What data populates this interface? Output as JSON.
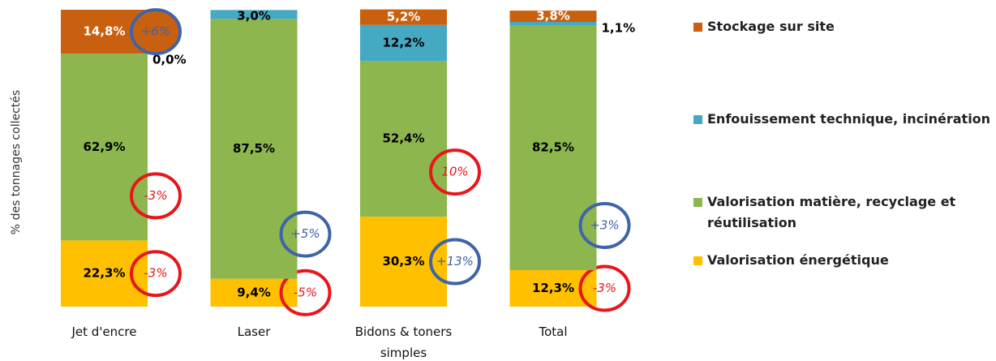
{
  "chart_data": {
    "type": "stacked_bar_100",
    "y_label": "% des tonnages collectés",
    "categories": [
      "Jet d'encre",
      "Laser",
      "Bidons & toners simples",
      "Total"
    ],
    "ylim": [
      0,
      100
    ],
    "series": [
      {
        "name": "Valorisation énergétique",
        "color": "#ffc000",
        "label_color": "#000000",
        "values": [
          22.3,
          9.4,
          30.3,
          12.3
        ],
        "value_labels": [
          "22,3%",
          "9,4%",
          "30,3%",
          "12,3%"
        ],
        "annotations": [
          "-3%",
          "-5%",
          "+13%",
          "-3%"
        ],
        "annotation_colors": [
          "#e8161b",
          "#e8161b",
          "#3f64a8",
          "#e8161b"
        ]
      },
      {
        "name": "Valorisation matière, recyclage et réutilisation",
        "color": "#8db64e",
        "label_color": "#000000",
        "values": [
          62.9,
          87.5,
          52.4,
          82.5
        ],
        "value_labels": [
          "62,9%",
          "87,5%",
          "52,4%",
          "82,5%"
        ],
        "annotations": [
          "-3%",
          "+5%",
          "10%",
          "+3%"
        ],
        "annotation_colors": [
          "#e8161b",
          "#3f64a8",
          "#e8161b",
          "#3f64a8"
        ]
      },
      {
        "name": "Enfouissement technique, incinération",
        "color": "#45a9c4",
        "label_color": "#000000",
        "values": [
          0.0,
          3.0,
          12.2,
          1.1
        ],
        "value_labels": [
          "0,0%",
          "3,0%",
          "12,2%",
          "1,1%"
        ],
        "annotations": [
          null,
          null,
          null,
          null
        ],
        "annotation_colors": [
          null,
          null,
          null,
          null
        ]
      },
      {
        "name": "Stockage sur site",
        "color": "#c8600f",
        "label_color": "#ffffff",
        "values": [
          14.8,
          0,
          5.2,
          3.8
        ],
        "value_labels": [
          "14,8%",
          null,
          "5,2%",
          "3,8%"
        ],
        "annotations": [
          "+6%",
          null,
          null,
          null
        ],
        "annotation_colors": [
          "#3f64a8",
          null,
          null,
          null
        ]
      }
    ]
  }
}
